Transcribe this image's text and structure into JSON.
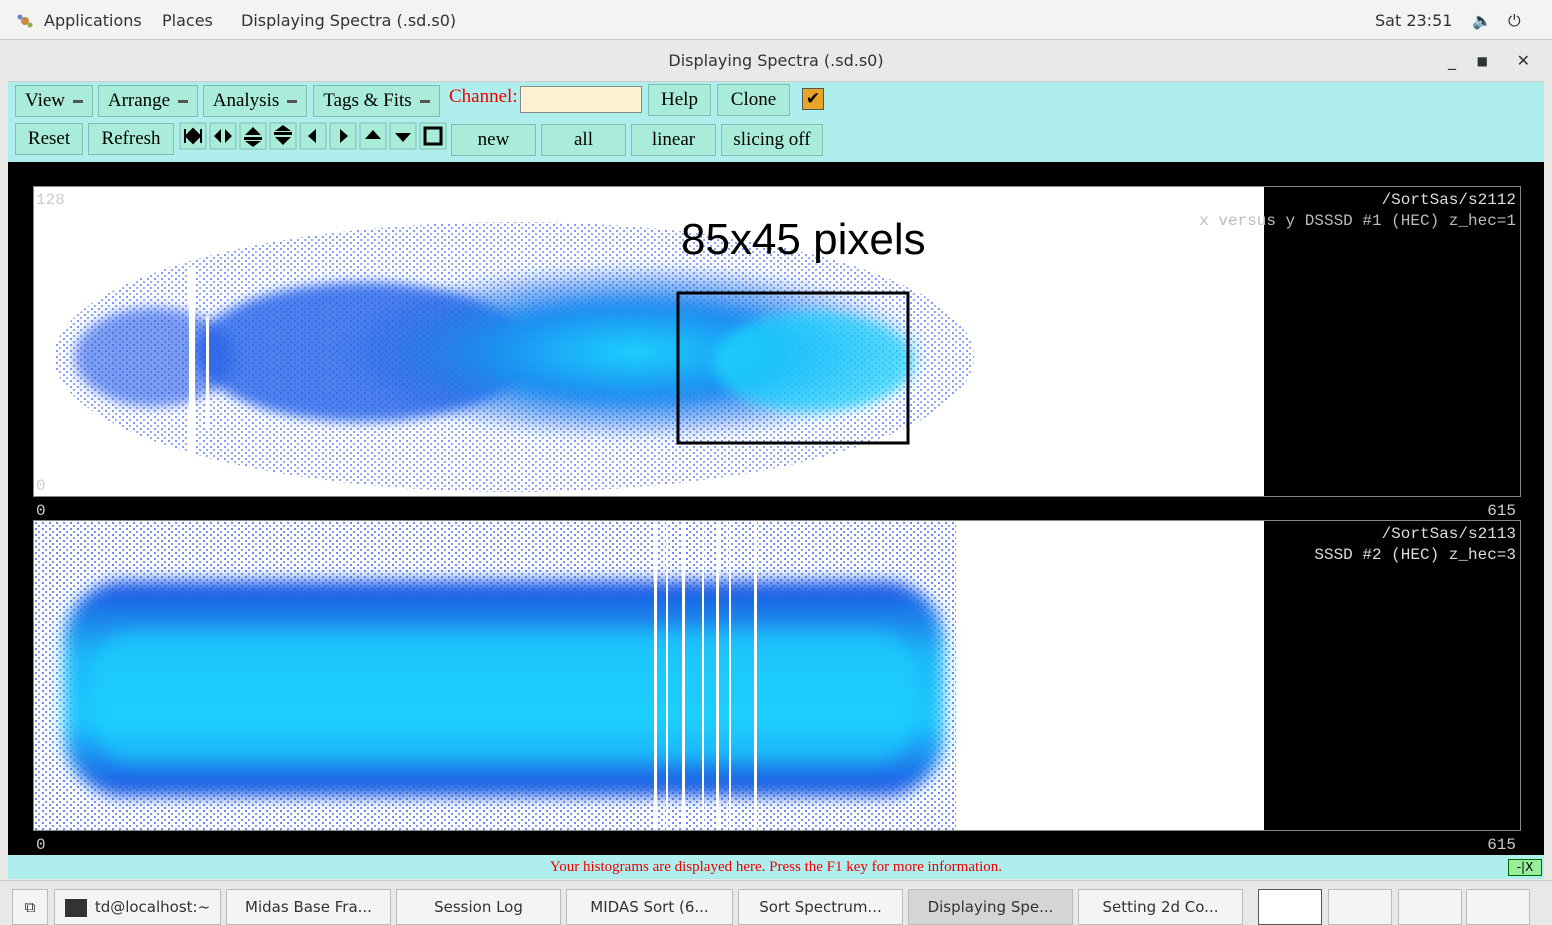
{
  "top_bar": {
    "menus": [
      "Applications",
      "Places"
    ],
    "window": "Displaying Spectra (.sd.s0)",
    "clock": "Sat 23:51"
  },
  "window": {
    "title": "Displaying Spectra (.sd.s0)"
  },
  "toolbar": {
    "menus": [
      "View",
      "Arrange",
      "Analysis",
      "Tags & Fits"
    ],
    "channel_label": "Channel:",
    "buttons": [
      "Help",
      "Clone"
    ],
    "row2_buttons": [
      "Reset",
      "Refresh"
    ],
    "mode_buttons": [
      "new",
      "all",
      "linear",
      "slicing off"
    ]
  },
  "panels": [
    {
      "name": "/SortSas/s2112",
      "description": "x versus y DSSSD #1 (HEC) z_hec=1",
      "y_max": "128",
      "y_min": "0",
      "x_min": "0",
      "x_max": "615",
      "annotation": "85x45 pixels"
    },
    {
      "name": "/SortSas/s2113",
      "description": "SSSD #2 (HEC) z_hec=3",
      "x_min": "0",
      "x_max": "615"
    }
  ],
  "status": "Your histograms are displayed here. Press the F1 key for more information.",
  "taskbar": [
    "td@localhost:~",
    "Midas Base Fra...",
    "Session Log",
    "MIDAS Sort (6...",
    "Sort Spectrum...",
    "Displaying Spe...",
    "Setting 2d Co..."
  ]
}
